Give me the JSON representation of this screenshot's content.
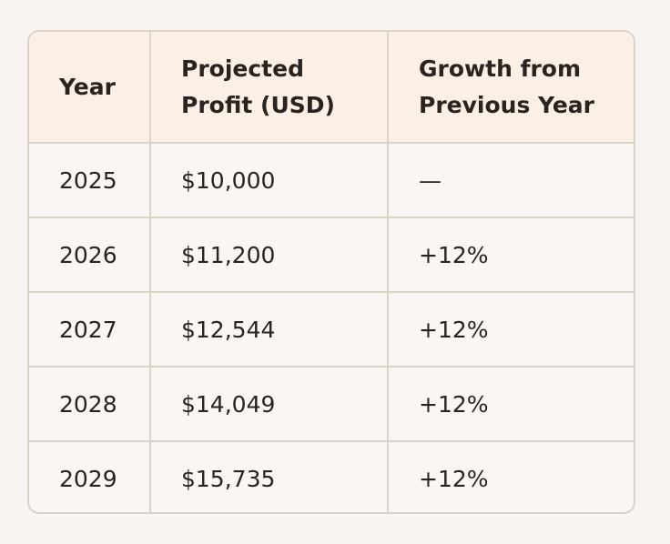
{
  "table": {
    "headers": [
      "Year",
      "Projected Profit (USD)",
      "Growth from Previous Year"
    ],
    "rows": [
      [
        "2025",
        "$10,000",
        "—"
      ],
      [
        "2026",
        "$11,200",
        "+12%"
      ],
      [
        "2027",
        "$12,544",
        "+12%"
      ],
      [
        "2028",
        "$14,049",
        "+12%"
      ],
      [
        "2029",
        "$15,735",
        "+12%"
      ]
    ]
  },
  "colors": {
    "page_background": "#f8f4f1",
    "header_background": "#fcefe6",
    "body_background": "#faf6f3",
    "border": "#ddd2c8",
    "text": "#2a2421"
  }
}
